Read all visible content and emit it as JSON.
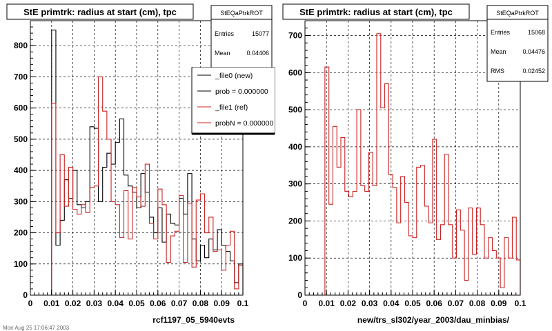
{
  "footer_text": "Mon Aug 25 17:06:47 2003",
  "chart_data": [
    {
      "type": "histogram",
      "title": "StE primtrk: radius at start (cm), tpc",
      "xlabel": "rcf1197_05_5940evts",
      "xlim": [
        0,
        0.1
      ],
      "ylim": [
        0,
        880
      ],
      "xticks": [
        "0",
        "0.01",
        "0.02",
        "0.03",
        "0.04",
        "0.05",
        "0.06",
        "0.07",
        "0.08",
        "0.09",
        "0.1"
      ],
      "yticks": [
        "0",
        "100",
        "200",
        "300",
        "400",
        "500",
        "600",
        "700",
        "800"
      ],
      "stats": {
        "name": "StEQaPtrkROT",
        "rows": [
          {
            "label": "Entries",
            "value": "15077"
          },
          {
            "label": "Mean",
            "value": "0.04406"
          }
        ]
      },
      "legend": [
        {
          "label": "_file0 (new)",
          "color": "#000000"
        },
        {
          "label": "prob = 0.000000",
          "color": "#000000"
        },
        {
          "label": "_file1 (ref)",
          "color": "#cc2222"
        },
        {
          "label": "probN = 0.000000",
          "color": "#cc2222"
        }
      ],
      "bin_edges": [
        0,
        0.1
      ],
      "series": [
        {
          "color": "#000000",
          "values": [
            0,
            0,
            0,
            0,
            0,
            850,
            160,
            240,
            370,
            310,
            400,
            290,
            280,
            300,
            540,
            535,
            300,
            410,
            455,
            420,
            490,
            565,
            385,
            350,
            330,
            280,
            390,
            330,
            250,
            200,
            280,
            170,
            260,
            230,
            225,
            310,
            260,
            390,
            180,
            110,
            160,
            120,
            180,
            145,
            210,
            160,
            140,
            110,
            40,
            100
          ]
        },
        {
          "color": "#cc2222",
          "values": [
            0,
            0,
            0,
            0,
            0,
            615,
            200,
            450,
            285,
            410,
            275,
            260,
            290,
            265,
            345,
            350,
            700,
            590,
            500,
            300,
            290,
            185,
            335,
            180,
            345,
            315,
            285,
            420,
            230,
            180,
            340,
            290,
            105,
            190,
            205,
            320,
            105,
            295,
            90,
            305,
            325,
            200,
            250,
            140,
            145,
            80,
            160,
            205,
            20,
            95
          ]
        }
      ]
    },
    {
      "type": "histogram",
      "title": "StE primtrk: radius at start (cm), tpc",
      "xlabel": "new/trs_sl302/year_2003/dau_minbias/",
      "xlim": [
        0,
        0.1
      ],
      "ylim": [
        0,
        740
      ],
      "xticks": [
        "0",
        "0.01",
        "0.02",
        "0.03",
        "0.04",
        "0.05",
        "0.06",
        "0.07",
        "0.08",
        "0.09",
        "0.1"
      ],
      "yticks": [
        "0",
        "100",
        "200",
        "300",
        "400",
        "500",
        "600",
        "700"
      ],
      "stats": {
        "name": "StEQaPtrkROT",
        "rows": [
          {
            "label": "Entries",
            "value": "15068"
          },
          {
            "label": "Mean",
            "value": "0.04476"
          },
          {
            "label": "RMS",
            "value": "0.02452"
          }
        ]
      },
      "legend": [],
      "bin_edges": [
        0,
        0.1
      ],
      "series": [
        {
          "color": "#cc2222",
          "values": [
            0,
            0,
            0,
            0,
            0,
            615,
            245,
            455,
            345,
            425,
            280,
            265,
            280,
            500,
            295,
            280,
            385,
            295,
            705,
            505,
            570,
            325,
            290,
            195,
            320,
            250,
            160,
            155,
            345,
            350,
            240,
            195,
            420,
            150,
            190,
            380,
            190,
            100,
            230,
            175,
            40,
            235,
            110,
            235,
            190,
            100,
            155,
            120,
            100,
            20,
            155,
            100,
            210,
            95
          ]
        }
      ]
    }
  ]
}
